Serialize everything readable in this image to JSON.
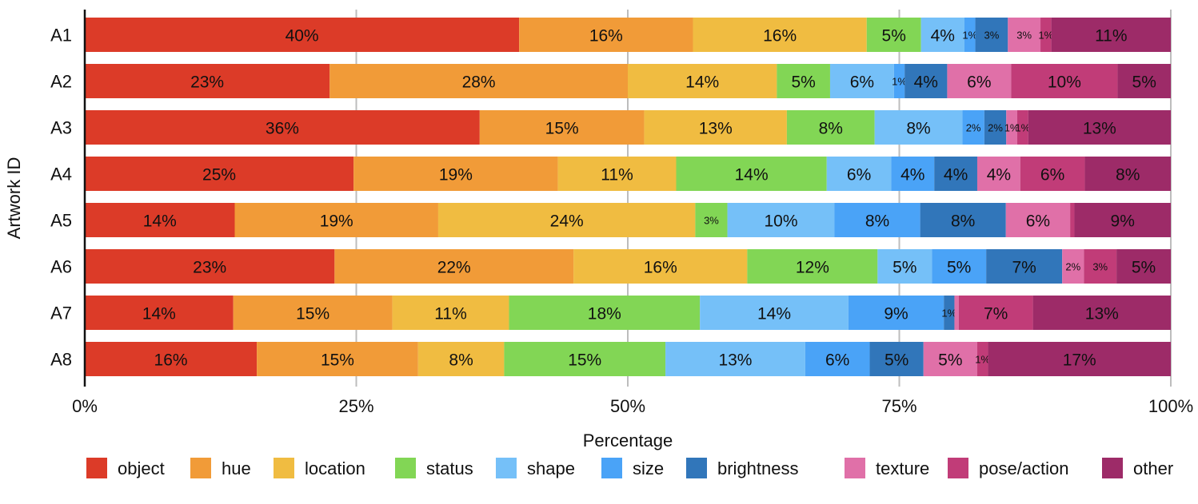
{
  "chart_data": {
    "type": "bar",
    "orientation": "horizontal",
    "stacked": true,
    "title": "",
    "xlabel": "Percentage",
    "ylabel": "Artwork ID",
    "xlim": [
      0,
      100
    ],
    "x_ticks": [
      "0%",
      "25%",
      "50%",
      "75%",
      "100%"
    ],
    "grid": "vertical",
    "legend_position": "bottom",
    "categories": [
      "A1",
      "A2",
      "A3",
      "A4",
      "A5",
      "A6",
      "A7",
      "A8"
    ],
    "series": [
      {
        "name": "object",
        "color": "#DC3B28",
        "values": [
          40,
          23,
          36,
          25,
          14,
          23,
          14,
          16
        ],
        "labels": [
          "40%",
          "23%",
          "36%",
          "25%",
          "14%",
          "23%",
          "14%",
          "16%"
        ]
      },
      {
        "name": "hue",
        "color": "#F19B38",
        "values": [
          16,
          28,
          15,
          19,
          19,
          22,
          15,
          15
        ],
        "labels": [
          "16%",
          "28%",
          "15%",
          "19%",
          "19%",
          "22%",
          "15%",
          "15%"
        ]
      },
      {
        "name": "location",
        "color": "#F0BC41",
        "values": [
          16,
          14,
          13,
          11,
          24,
          16,
          11,
          8
        ],
        "labels": [
          "16%",
          "14%",
          "13%",
          "11%",
          "24%",
          "16%",
          "11%",
          "8%"
        ]
      },
      {
        "name": "status",
        "color": "#82D655",
        "values": [
          5,
          5,
          8,
          14,
          3,
          12,
          18,
          15
        ],
        "labels": [
          "5%",
          "5%",
          "8%",
          "14%",
          "3%",
          "12%",
          "18%",
          "15%"
        ]
      },
      {
        "name": "shape",
        "color": "#75C0F8",
        "values": [
          4,
          6,
          8,
          6,
          10,
          5,
          14,
          13
        ],
        "labels": [
          "4%",
          "6%",
          "8%",
          "6%",
          "10%",
          "5%",
          "14%",
          "13%"
        ]
      },
      {
        "name": "size",
        "color": "#4AA3F7",
        "values": [
          1,
          1,
          2,
          4,
          8,
          5,
          9,
          6
        ],
        "labels": [
          "1%",
          "1%",
          "2%",
          "4%",
          "8%",
          "5%",
          "9%",
          "6%"
        ]
      },
      {
        "name": "brightness",
        "color": "#3176BA",
        "values": [
          3,
          4,
          2,
          4,
          8,
          7,
          1,
          5
        ],
        "labels": [
          "3%",
          "4%",
          "2%",
          "4%",
          "8%",
          "7%",
          "1%",
          "5%"
        ]
      },
      {
        "name": "texture",
        "color": "#E070A8",
        "values": [
          3,
          6,
          1,
          4,
          6,
          2,
          0.4,
          5
        ],
        "labels": [
          "3%",
          "6%",
          "1%",
          "4%",
          "6%",
          "2%",
          "",
          "5%"
        ]
      },
      {
        "name": "pose/action",
        "color": "#C13C78",
        "values": [
          1,
          10,
          1,
          6,
          0.4,
          3,
          7,
          1
        ],
        "labels": [
          "1%",
          "10%",
          "1%",
          "6%",
          "",
          "3%",
          "7%",
          "1%"
        ]
      },
      {
        "name": "other",
        "color": "#9D2B68",
        "values": [
          11,
          5,
          13,
          8,
          9,
          5,
          13,
          17
        ],
        "labels": [
          "11%",
          "5%",
          "13%",
          "8%",
          "9%",
          "5%",
          "13%",
          "17%"
        ]
      }
    ]
  }
}
